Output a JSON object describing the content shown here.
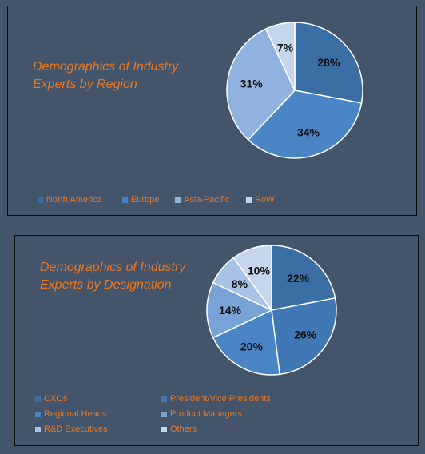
{
  "colors": {
    "background": "#44546a",
    "title": "#e87722",
    "legend_text": "#e87722"
  },
  "chart_data": [
    {
      "type": "pie",
      "title": "Demographics of Industry Experts by Region",
      "title_lines": [
        "Demographics of Industry",
        "Experts by Region"
      ],
      "legend_position": "bottom",
      "slices": [
        {
          "label": "North America",
          "value": 28,
          "display": "28%",
          "color": "#3a6ea5"
        },
        {
          "label": "Europe",
          "value": 34,
          "display": "34%",
          "color": "#4a86c5"
        },
        {
          "label": "Asia-Pacific",
          "value": 31,
          "display": "31%",
          "color": "#8fb3de"
        },
        {
          "label": "RoW",
          "value": 7,
          "display": "7%",
          "color": "#c5d6ec"
        }
      ]
    },
    {
      "type": "pie",
      "title": "Demographics of Industry Experts by Designation",
      "title_lines": [
        "Demographics of Industry",
        "Experts by Designation"
      ],
      "legend_position": "bottom",
      "slices": [
        {
          "label": "CXOs",
          "value": 22,
          "display": "22%",
          "color": "#3a6ea5"
        },
        {
          "label": "President/Vice Presidents",
          "value": 26,
          "display": "26%",
          "color": "#3f78b5"
        },
        {
          "label": "Regional Heads",
          "value": 20,
          "display": "20%",
          "color": "#4a86c5"
        },
        {
          "label": "Product Managers",
          "value": 14,
          "display": "14%",
          "color": "#79a3d6"
        },
        {
          "label": "R&D Executives",
          "value": 8,
          "display": "8%",
          "color": "#a7c2e6"
        },
        {
          "label": "Others",
          "value": 10,
          "display": "10%",
          "color": "#c5d6ec"
        }
      ]
    }
  ]
}
